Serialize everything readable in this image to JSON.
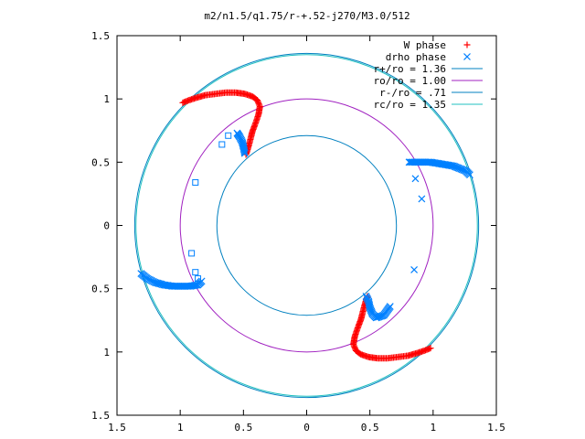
{
  "chart_data": {
    "type": "scatter",
    "title": "m2/n1.5/q1.75/r-+.52-j270/M3.0/512",
    "xlabel": "",
    "ylabel": "",
    "xlim": [
      -1.5,
      1.5
    ],
    "ylim": [
      -1.5,
      1.5
    ],
    "x_ticks": [
      -1.5,
      -1,
      -0.5,
      0,
      0.5,
      1,
      1.5
    ],
    "x_tick_labels": [
      "1.5",
      "1",
      "0.5",
      "0",
      "0.5",
      "1",
      "1.5"
    ],
    "y_ticks": [
      1.5,
      1,
      0.5,
      0,
      -0.5,
      -1,
      -1.5
    ],
    "y_tick_labels": [
      "1.5",
      "1",
      "0.5",
      "0",
      "0.5",
      "1",
      "1.5"
    ],
    "grid": false,
    "legend_position": "top-right",
    "series": [
      {
        "name": "W phase",
        "marker": "plus",
        "color": "#ff0000",
        "points": [
          [
            -0.98,
            0.97
          ],
          [
            -0.93,
            0.99
          ],
          [
            -0.87,
            1.01
          ],
          [
            -0.8,
            1.03
          ],
          [
            -0.72,
            1.04
          ],
          [
            -0.64,
            1.05
          ],
          [
            -0.56,
            1.05
          ],
          [
            -0.49,
            1.04
          ],
          [
            -0.43,
            1.02
          ],
          [
            -0.39,
            0.99
          ],
          [
            -0.37,
            0.94
          ],
          [
            -0.38,
            0.88
          ],
          [
            -0.4,
            0.82
          ],
          [
            -0.43,
            0.74
          ],
          [
            -0.45,
            0.66
          ],
          [
            -0.47,
            0.59
          ],
          [
            -0.48,
            0.56
          ],
          [
            0.98,
            -0.97
          ],
          [
            0.93,
            -0.99
          ],
          [
            0.87,
            -1.01
          ],
          [
            0.8,
            -1.03
          ],
          [
            0.72,
            -1.04
          ],
          [
            0.64,
            -1.05
          ],
          [
            0.56,
            -1.05
          ],
          [
            0.49,
            -1.04
          ],
          [
            0.43,
            -1.02
          ],
          [
            0.39,
            -0.99
          ],
          [
            0.37,
            -0.94
          ],
          [
            0.38,
            -0.88
          ],
          [
            0.4,
            -0.82
          ],
          [
            0.43,
            -0.74
          ],
          [
            0.45,
            -0.66
          ],
          [
            0.47,
            -0.59
          ],
          [
            0.48,
            -0.56
          ]
        ]
      },
      {
        "name": "drho phase",
        "marker": "cross",
        "color": "#0080ff",
        "points": [
          [
            -0.55,
            0.73
          ],
          [
            -0.53,
            0.7
          ],
          [
            -0.51,
            0.66
          ],
          [
            -0.5,
            0.62
          ],
          [
            -0.49,
            0.57
          ],
          [
            0.81,
            0.5
          ],
          [
            0.86,
            0.5
          ],
          [
            0.92,
            0.5
          ],
          [
            0.98,
            0.5
          ],
          [
            1.04,
            0.49
          ],
          [
            1.1,
            0.48
          ],
          [
            1.16,
            0.47
          ],
          [
            1.21,
            0.45
          ],
          [
            1.26,
            0.43
          ],
          [
            1.29,
            0.4
          ],
          [
            0.86,
            0.37
          ],
          [
            0.91,
            0.21
          ],
          [
            0.85,
            -0.35
          ],
          [
            -1.31,
            -0.38
          ],
          [
            -1.26,
            -0.42
          ],
          [
            -1.2,
            -0.45
          ],
          [
            -1.13,
            -0.47
          ],
          [
            -1.06,
            -0.48
          ],
          [
            -0.99,
            -0.48
          ],
          [
            -0.92,
            -0.48
          ],
          [
            -0.86,
            -0.47
          ],
          [
            -0.83,
            -0.44
          ],
          [
            0.47,
            -0.56
          ],
          [
            0.49,
            -0.6
          ],
          [
            0.5,
            -0.65
          ],
          [
            0.52,
            -0.7
          ],
          [
            0.55,
            -0.73
          ],
          [
            0.61,
            -0.71
          ],
          [
            0.66,
            -0.64
          ]
        ]
      },
      {
        "name": "",
        "marker": "square",
        "color": "#0080ff",
        "points": [
          [
            -0.67,
            0.64
          ],
          [
            -0.62,
            0.71
          ],
          [
            -0.88,
            0.34
          ],
          [
            -0.91,
            -0.22
          ],
          [
            -0.88,
            -0.37
          ],
          [
            -0.86,
            -0.42
          ]
        ]
      }
    ],
    "circles": [
      {
        "name": "r+/ro = 1.36",
        "radius": 1.36,
        "color": "#0080c0"
      },
      {
        "name": "ro/ro = 1.00",
        "radius": 1.0,
        "color": "#a020c0"
      },
      {
        "name": "r-/ro = .71",
        "radius": 0.71,
        "color": "#0080c0"
      },
      {
        "name": "rc/ro = 1.35",
        "radius": 1.35,
        "color": "#20c0c0"
      }
    ]
  }
}
